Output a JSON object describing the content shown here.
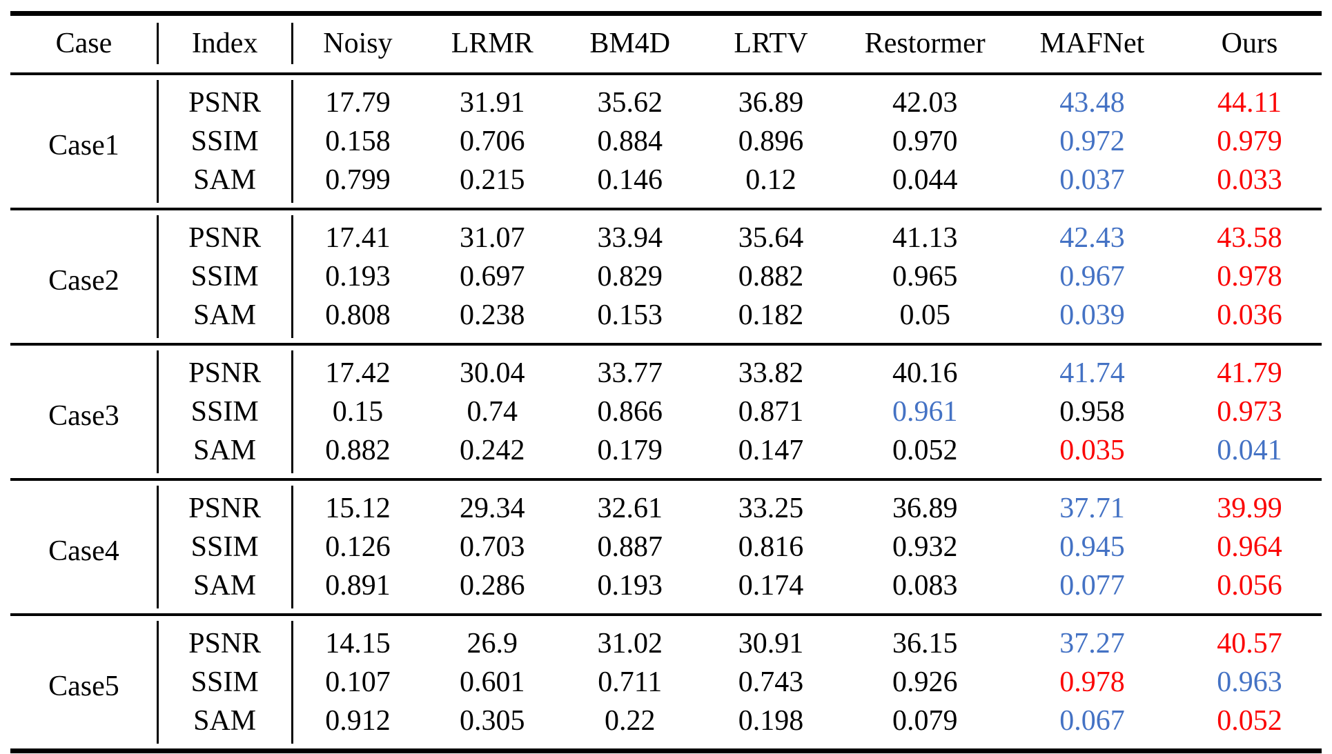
{
  "colors": {
    "k": "#000000",
    "s": "#4472c4",
    "b": "#fb0505"
  },
  "legend": {
    "best_color_meaning": "best result (red)",
    "second_color_meaning": "second-best result (blue)"
  },
  "table": {
    "columns": [
      "Case",
      "Index",
      "Noisy",
      "LRMR",
      "BM4D",
      "LRTV",
      "Restormer",
      "MAFNet",
      "Ours"
    ],
    "cases": [
      {
        "name": "Case1",
        "rows": [
          {
            "index": "PSNR",
            "values": [
              "17.79",
              "31.91",
              "35.62",
              "36.89",
              "42.03",
              "43.48",
              "44.11"
            ],
            "colors": [
              "k",
              "k",
              "k",
              "k",
              "k",
              "s",
              "b"
            ]
          },
          {
            "index": "SSIM",
            "values": [
              "0.158",
              "0.706",
              "0.884",
              "0.896",
              "0.970",
              "0.972",
              "0.979"
            ],
            "colors": [
              "k",
              "k",
              "k",
              "k",
              "k",
              "s",
              "b"
            ]
          },
          {
            "index": "SAM",
            "values": [
              "0.799",
              "0.215",
              "0.146",
              "0.12",
              "0.044",
              "0.037",
              "0.033"
            ],
            "colors": [
              "k",
              "k",
              "k",
              "k",
              "k",
              "s",
              "b"
            ]
          }
        ]
      },
      {
        "name": "Case2",
        "rows": [
          {
            "index": "PSNR",
            "values": [
              "17.41",
              "31.07",
              "33.94",
              "35.64",
              "41.13",
              "42.43",
              "43.58"
            ],
            "colors": [
              "k",
              "k",
              "k",
              "k",
              "k",
              "s",
              "b"
            ]
          },
          {
            "index": "SSIM",
            "values": [
              "0.193",
              "0.697",
              "0.829",
              "0.882",
              "0.965",
              "0.967",
              "0.978"
            ],
            "colors": [
              "k",
              "k",
              "k",
              "k",
              "k",
              "s",
              "b"
            ]
          },
          {
            "index": "SAM",
            "values": [
              "0.808",
              "0.238",
              "0.153",
              "0.182",
              "0.05",
              "0.039",
              "0.036"
            ],
            "colors": [
              "k",
              "k",
              "k",
              "k",
              "k",
              "s",
              "b"
            ]
          }
        ]
      },
      {
        "name": "Case3",
        "rows": [
          {
            "index": "PSNR",
            "values": [
              "17.42",
              "30.04",
              "33.77",
              "33.82",
              "40.16",
              "41.74",
              "41.79"
            ],
            "colors": [
              "k",
              "k",
              "k",
              "k",
              "k",
              "s",
              "b"
            ]
          },
          {
            "index": "SSIM",
            "values": [
              "0.15",
              "0.74",
              "0.866",
              "0.871",
              "0.961",
              "0.958",
              "0.973"
            ],
            "colors": [
              "k",
              "k",
              "k",
              "k",
              "s",
              "k",
              "b"
            ]
          },
          {
            "index": "SAM",
            "values": [
              "0.882",
              "0.242",
              "0.179",
              "0.147",
              "0.052",
              "0.035",
              "0.041"
            ],
            "colors": [
              "k",
              "k",
              "k",
              "k",
              "k",
              "b",
              "s"
            ]
          }
        ]
      },
      {
        "name": "Case4",
        "rows": [
          {
            "index": "PSNR",
            "values": [
              "15.12",
              "29.34",
              "32.61",
              "33.25",
              "36.89",
              "37.71",
              "39.99"
            ],
            "colors": [
              "k",
              "k",
              "k",
              "k",
              "k",
              "s",
              "b"
            ]
          },
          {
            "index": "SSIM",
            "values": [
              "0.126",
              "0.703",
              "0.887",
              "0.816",
              "0.932",
              "0.945",
              "0.964"
            ],
            "colors": [
              "k",
              "k",
              "k",
              "k",
              "k",
              "s",
              "b"
            ]
          },
          {
            "index": "SAM",
            "values": [
              "0.891",
              "0.286",
              "0.193",
              "0.174",
              "0.083",
              "0.077",
              "0.056"
            ],
            "colors": [
              "k",
              "k",
              "k",
              "k",
              "k",
              "s",
              "b"
            ]
          }
        ]
      },
      {
        "name": "Case5",
        "rows": [
          {
            "index": "PSNR",
            "values": [
              "14.15",
              "26.9",
              "31.02",
              "30.91",
              "36.15",
              "37.27",
              "40.57"
            ],
            "colors": [
              "k",
              "k",
              "k",
              "k",
              "k",
              "s",
              "b"
            ]
          },
          {
            "index": "SSIM",
            "values": [
              "0.107",
              "0.601",
              "0.711",
              "0.743",
              "0.926",
              "0.978",
              "0.963"
            ],
            "colors": [
              "k",
              "k",
              "k",
              "k",
              "k",
              "b",
              "s"
            ]
          },
          {
            "index": "SAM",
            "values": [
              "0.912",
              "0.305",
              "0.22",
              "0.198",
              "0.079",
              "0.067",
              "0.052"
            ],
            "colors": [
              "k",
              "k",
              "k",
              "k",
              "k",
              "s",
              "b"
            ]
          }
        ]
      }
    ]
  }
}
